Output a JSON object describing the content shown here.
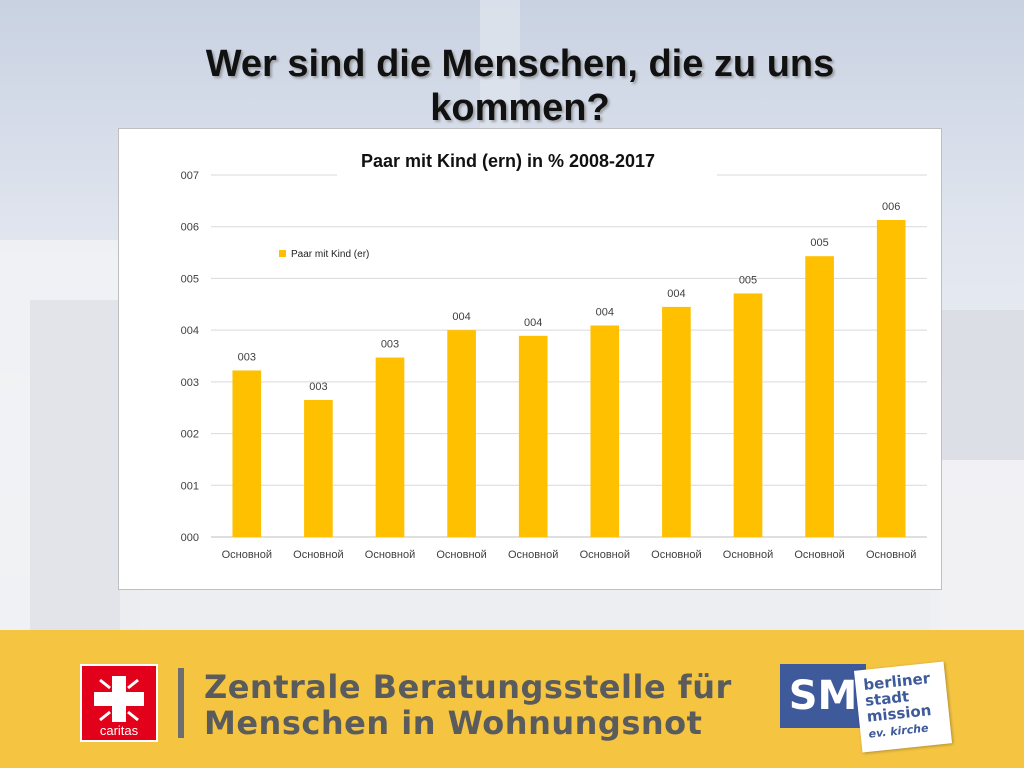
{
  "slide": {
    "title": "Wer sind die Menschen, die zu uns kommen?"
  },
  "chart_data": {
    "type": "bar",
    "title": "Paar mit Kind (ern) in % 2008-2017",
    "categories": [
      "Основной",
      "Основной",
      "Основной",
      "Основной",
      "Основной",
      "Основной",
      "Основной",
      "Основной",
      "Основной",
      "Основной"
    ],
    "series": [
      {
        "name": "Paar mit Kind (er)",
        "values": [
          3.22,
          2.65,
          3.47,
          4.0,
          3.89,
          4.09,
          4.45,
          4.71,
          5.43,
          6.13
        ],
        "labels": [
          "003",
          "003",
          "003",
          "004",
          "004",
          "004",
          "004",
          "005",
          "005",
          "006"
        ],
        "color": "#ffc000"
      }
    ],
    "ylim": [
      0,
      7
    ],
    "ytick_labels": [
      "000",
      "001",
      "002",
      "003",
      "004",
      "005",
      "006",
      "007"
    ],
    "xlabel": "",
    "ylabel": "",
    "grid": true,
    "legend": "top-left"
  },
  "footer": {
    "caritas_label": "caritas",
    "org_line1": "Zentrale Beratungsstelle für",
    "org_line2": "Menschen in Wohnungsnot",
    "sm_label": "SM",
    "bsm_line1": "berliner",
    "bsm_line2": "stadt",
    "bsm_line3": "mission",
    "bsm_line4": "ev. kirche",
    "background_color": "#f5c542"
  }
}
